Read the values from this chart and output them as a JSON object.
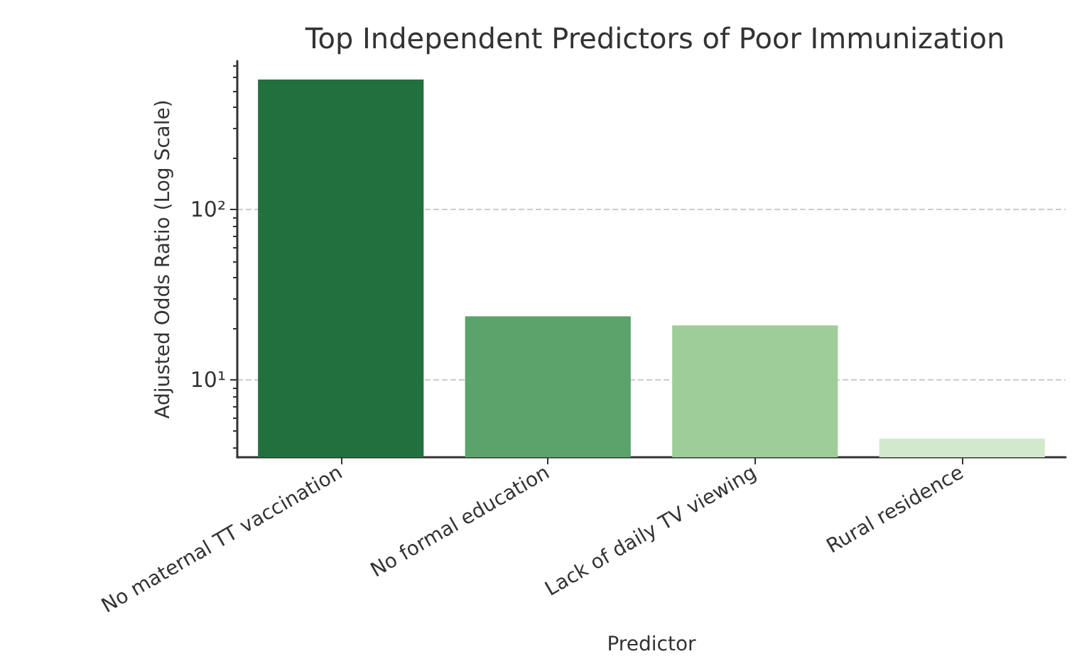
{
  "chart_data": {
    "type": "bar",
    "title": "Top Independent Predictors of Poor Immunization",
    "xlabel": "Predictor",
    "ylabel": "Adjusted Odds Ratio (Log Scale)",
    "categories": [
      "No maternal TT vaccination",
      "No formal education",
      "Lack of daily TV viewing",
      "Rural residence"
    ],
    "values": [
      584,
      23.6,
      20.9,
      4.5
    ],
    "colors": [
      "#23703f",
      "#5aa36b",
      "#9fcd9a",
      "#d3e9cd"
    ],
    "log": "y",
    "ylim": [
      3.5,
      750
    ],
    "yticks": [
      {
        "value": 10,
        "label": "10¹"
      },
      {
        "value": 100,
        "label": "10²"
      }
    ],
    "grid": "y"
  }
}
